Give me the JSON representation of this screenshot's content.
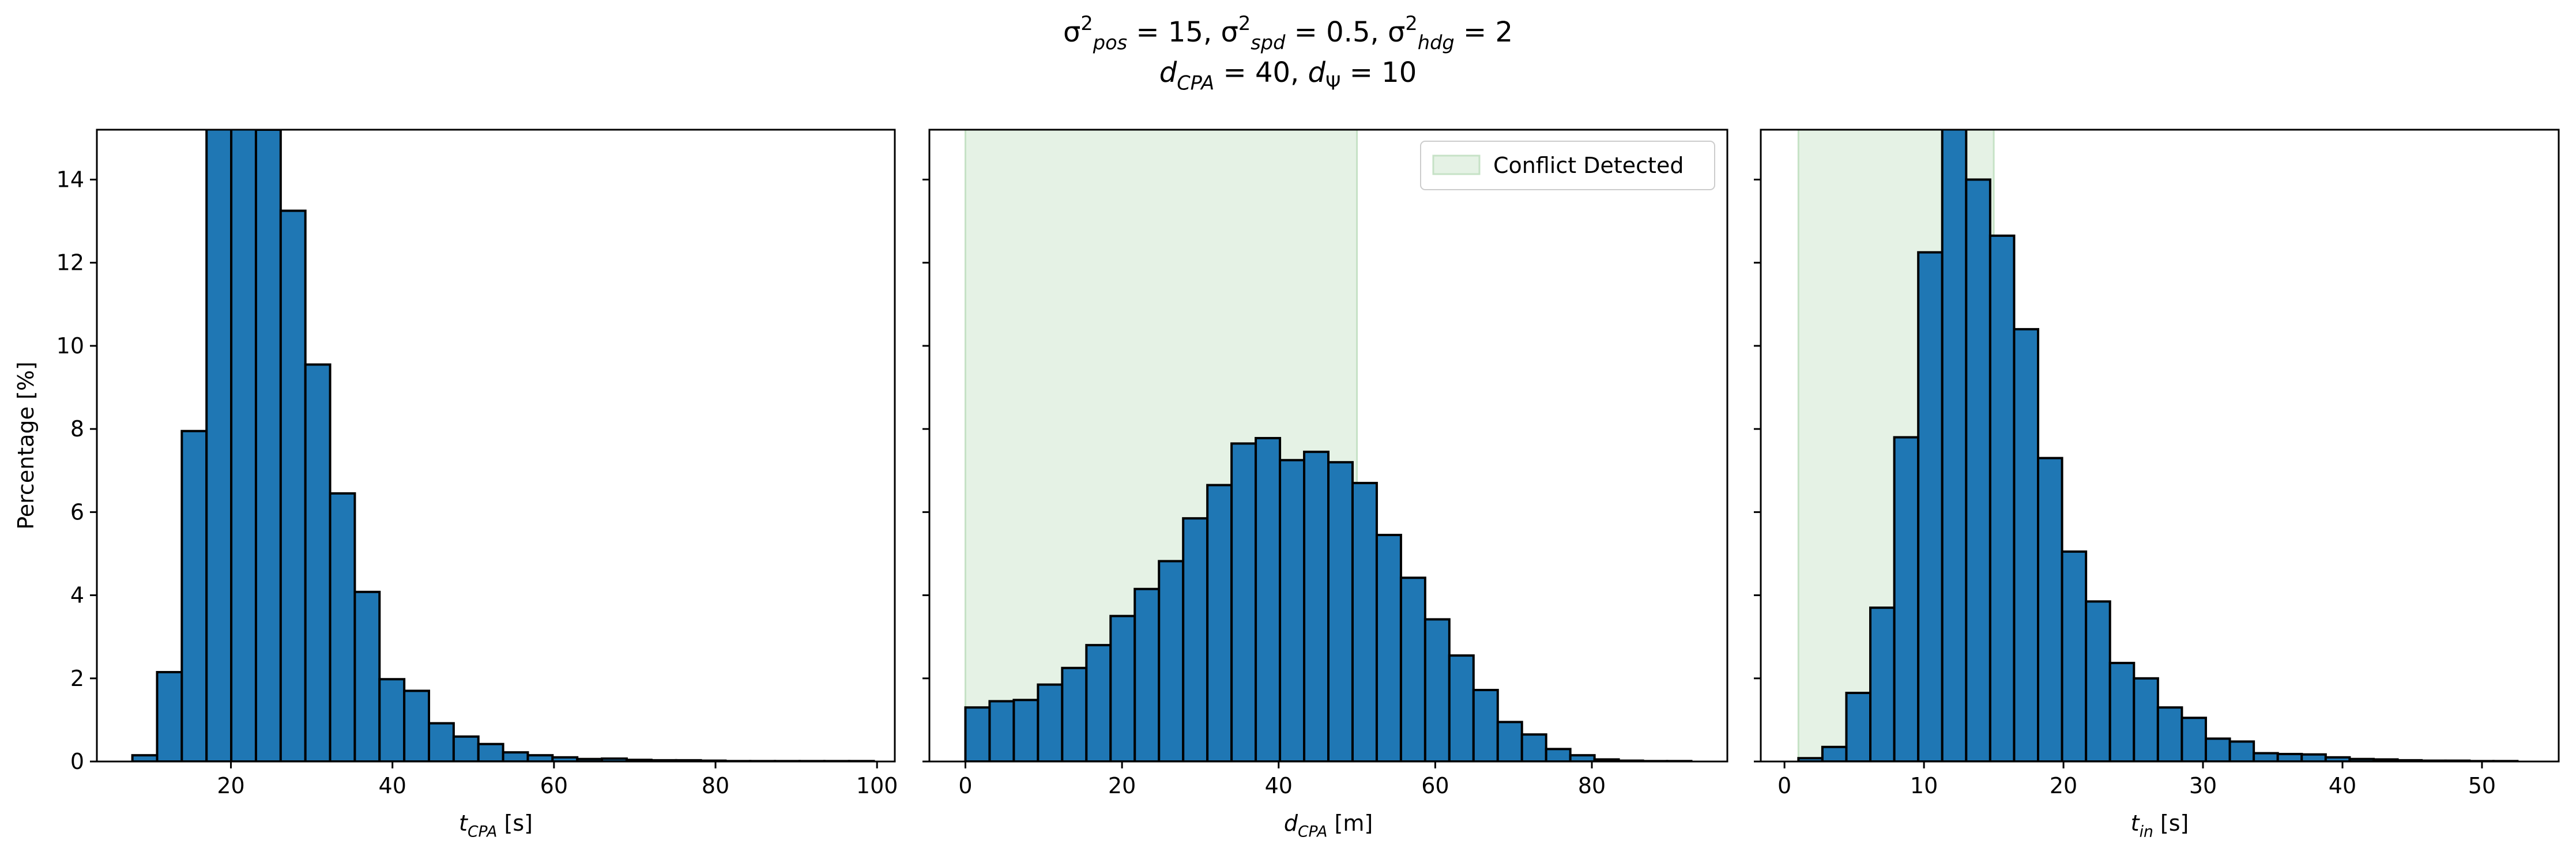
{
  "figure": {
    "suptitle_lines": [
      [
        {
          "t": "σ"
        },
        {
          "t": "2",
          "sup": true
        },
        {
          "t": "pos",
          "sub": true,
          "it": true
        },
        {
          "t": " = 15, "
        },
        {
          "t": "σ"
        },
        {
          "t": "2",
          "sup": true
        },
        {
          "t": "spd",
          "sub": true,
          "it": true
        },
        {
          "t": " = 0.5, "
        },
        {
          "t": "σ"
        },
        {
          "t": "2",
          "sup": true
        },
        {
          "t": "hdg",
          "sub": true,
          "it": true
        },
        {
          "t": " = 2"
        }
      ],
      [
        {
          "t": "d",
          "it": true
        },
        {
          "t": "CPA",
          "sub": true,
          "it": true
        },
        {
          "t": " = 40, "
        },
        {
          "t": "d",
          "it": true
        },
        {
          "t": "Ψ",
          "sub": true
        },
        {
          "t": " = 10"
        }
      ]
    ]
  },
  "colors": {
    "bar_fill": "#1f77b4",
    "bar_edge": "#000000",
    "conflict_fill": "#e5f2e5",
    "conflict_edge": "#c6e2c6"
  },
  "chart_data": [
    {
      "type": "bar",
      "histogram": true,
      "xlabel": [
        {
          "t": "t",
          "it": true
        },
        {
          "t": "CPA",
          "sub": true,
          "it": true
        },
        {
          "t": " [s]"
        }
      ],
      "ylabel": "Percentage [%]",
      "xlim": [
        3.4,
        102.2
      ],
      "ylim": [
        0,
        15.2
      ],
      "xticks": [
        20,
        40,
        60,
        80,
        100
      ],
      "yticks": [
        0,
        2,
        4,
        6,
        8,
        10,
        12,
        14
      ],
      "show_ytick_labels": true,
      "bin_start": 7.8,
      "bin_width": 3.06,
      "values": [
        0.15,
        2.15,
        7.95,
        16.5,
        16.8,
        15.2,
        13.25,
        9.55,
        6.45,
        4.08,
        1.98,
        1.7,
        0.92,
        0.6,
        0.42,
        0.22,
        0.15,
        0.1,
        0.06,
        0.07,
        0.04,
        0.03,
        0.03,
        0.02,
        0.01,
        0.01,
        0.01,
        0.01,
        0.01,
        0.01
      ]
    },
    {
      "type": "bar",
      "histogram": true,
      "xlabel": [
        {
          "t": "d",
          "it": true
        },
        {
          "t": "CPA",
          "sub": true,
          "it": true
        },
        {
          "t": " [m]"
        }
      ],
      "xlim": [
        -4.6,
        97.3
      ],
      "ylim": [
        0,
        15.2
      ],
      "xticks": [
        0,
        20,
        40,
        60,
        80
      ],
      "yticks": [
        0,
        2,
        4,
        6,
        8,
        10,
        12,
        14
      ],
      "show_ytick_labels": false,
      "bin_start": 0,
      "bin_width": 3.09,
      "values": [
        1.3,
        1.45,
        1.48,
        1.85,
        2.25,
        2.8,
        3.5,
        4.15,
        4.82,
        5.85,
        6.65,
        7.65,
        7.78,
        7.25,
        7.45,
        7.2,
        6.7,
        5.45,
        4.42,
        3.42,
        2.55,
        1.72,
        0.95,
        0.65,
        0.3,
        0.15,
        0.05,
        0.02,
        0.01,
        0.01
      ],
      "conflict_region": [
        0,
        50
      ],
      "legend": {
        "label": "Conflict Detected",
        "placement": "top-right"
      }
    },
    {
      "type": "bar",
      "histogram": true,
      "xlabel": [
        {
          "t": "t",
          "it": true
        },
        {
          "t": "in",
          "sub": true,
          "it": true
        },
        {
          "t": " [s]"
        }
      ],
      "xlim": [
        -1.7,
        55.5
      ],
      "ylim": [
        0,
        15.2
      ],
      "xticks": [
        0,
        10,
        20,
        30,
        40,
        50
      ],
      "yticks": [
        0,
        2,
        4,
        6,
        8,
        10,
        12,
        14
      ],
      "show_ytick_labels": false,
      "bin_start": 1.0,
      "bin_width": 1.718,
      "values": [
        0.08,
        0.35,
        1.65,
        3.7,
        7.8,
        12.25,
        15.5,
        14.0,
        12.65,
        10.4,
        7.3,
        5.05,
        3.85,
        2.37,
        2.0,
        1.3,
        1.05,
        0.55,
        0.48,
        0.2,
        0.18,
        0.17,
        0.1,
        0.06,
        0.05,
        0.03,
        0.02,
        0.02,
        0.01,
        0.01
      ],
      "conflict_region": [
        1.0,
        15.0
      ]
    }
  ]
}
